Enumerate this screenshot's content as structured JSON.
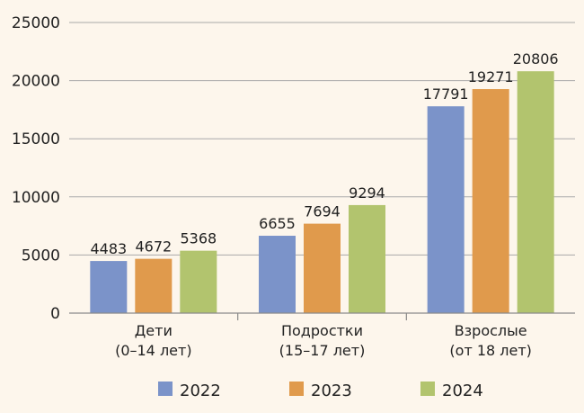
{
  "chart_data": {
    "type": "bar",
    "categories": [
      [
        "Дети",
        "(0–14 лет)"
      ],
      [
        "Подростки",
        "(15–17 лет)"
      ],
      [
        "Взрослые",
        "(от 18 лет)"
      ]
    ],
    "series": [
      {
        "name": "2022",
        "color": "#7b93c9",
        "values": [
          4483,
          6655,
          17791
        ]
      },
      {
        "name": "2023",
        "color": "#e09a4c",
        "values": [
          4672,
          7694,
          19271
        ]
      },
      {
        "name": "2024",
        "color": "#b2c46e",
        "values": [
          5368,
          9294,
          20806
        ]
      }
    ],
    "ylim": [
      0,
      25000
    ],
    "yticks": [
      0,
      5000,
      10000,
      15000,
      20000,
      25000
    ],
    "grid": true,
    "legend_position": "bottom"
  }
}
